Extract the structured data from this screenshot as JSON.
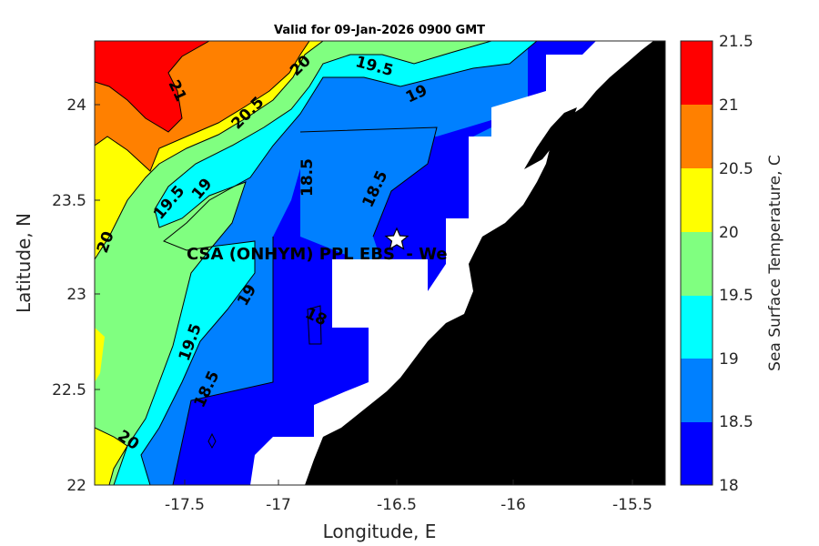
{
  "title": "Valid for 09-Jan-2026 0900 GMT",
  "xlabel": "Longitude, E",
  "ylabel": "Latitude, N",
  "colorbar_label": "Sea Surface Temperature, C",
  "site_label": "CSA (ONHYM) PPL EBS  - We",
  "site_marker": "star-icon",
  "x_ticks": [
    "-17.5",
    "-17",
    "-16.5",
    "-16",
    "-15.5"
  ],
  "y_ticks": [
    "22",
    "22.5",
    "23",
    "23.5",
    "24"
  ],
  "colorbar": {
    "levels": [
      "18",
      "18.5",
      "19",
      "19.5",
      "20",
      "20.5",
      "21",
      "21.5"
    ],
    "colors": [
      "#0000ff",
      "#0080ff",
      "#00ffff",
      "#80ff80",
      "#ffff00",
      "#ff8000",
      "#ff0000"
    ]
  },
  "land_color": "#000000",
  "contour_labels": [
    "21",
    "20.5",
    "20",
    "19.5",
    "19",
    "19.5",
    "19",
    "18.5",
    "18.5",
    "20",
    "19",
    "19.5",
    "18",
    "18.5",
    "20"
  ],
  "chart_data": {
    "type": "heatmap",
    "title": "Valid for 09-Jan-2026 0900 GMT",
    "xlabel": "Longitude, E",
    "ylabel": "Latitude, N",
    "xlim": [
      -17.78,
      -15.35
    ],
    "ylim": [
      22.0,
      24.33
    ],
    "x_ticks": [
      -17.5,
      -17,
      -16.5,
      -16,
      -15.5
    ],
    "y_ticks": [
      22,
      22.5,
      23,
      23.5,
      24
    ],
    "colorbar": {
      "label": "Sea Surface Temperature, C",
      "range": [
        18,
        21.5
      ],
      "levels": [
        18,
        18.5,
        19,
        19.5,
        20,
        20.5,
        21,
        21.5
      ]
    },
    "site": {
      "label": "CSA (ONHYM) PPL EBS  - We",
      "lon": -16.48,
      "lat": 23.29
    },
    "contour_levels_labeled": [
      18,
      18.5,
      19,
      19.5,
      20,
      20.5,
      21
    ]
  }
}
